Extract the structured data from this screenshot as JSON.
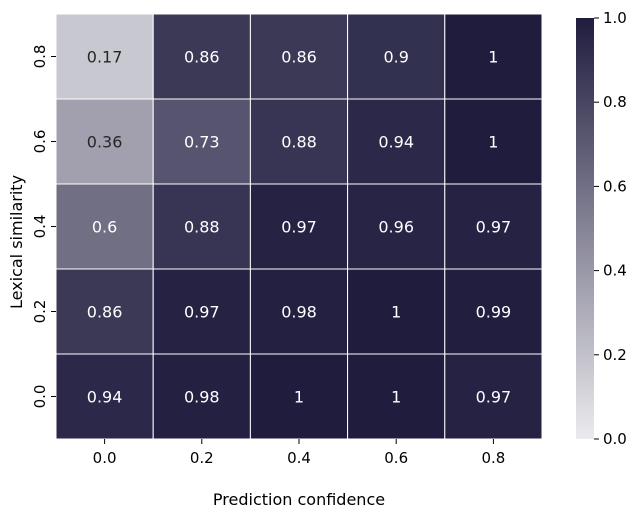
{
  "chart_data": {
    "type": "heatmap",
    "title": "",
    "xlabel": "Prediction confidence",
    "ylabel": "Lexical similarity",
    "x_categories": [
      "0.0",
      "0.2",
      "0.4",
      "0.6",
      "0.8"
    ],
    "y_categories_top_to_bottom": [
      "0.8",
      "0.6",
      "0.4",
      "0.2",
      "0.0"
    ],
    "values_top_to_bottom": [
      [
        0.17,
        0.86,
        0.86,
        0.9,
        1
      ],
      [
        0.36,
        0.73,
        0.88,
        0.94,
        1
      ],
      [
        0.6,
        0.88,
        0.97,
        0.96,
        0.97
      ],
      [
        0.86,
        0.97,
        0.98,
        1,
        0.99
      ],
      [
        0.94,
        0.98,
        1,
        1,
        0.97
      ]
    ],
    "value_labels_top_to_bottom": [
      [
        "0.17",
        "0.86",
        "0.86",
        "0.9",
        "1"
      ],
      [
        "0.36",
        "0.73",
        "0.88",
        "0.94",
        "1"
      ],
      [
        "0.6",
        "0.88",
        "0.97",
        "0.96",
        "0.97"
      ],
      [
        "0.86",
        "0.97",
        "0.98",
        "1",
        "0.99"
      ],
      [
        "0.94",
        "0.98",
        "1",
        "1",
        "0.97"
      ]
    ],
    "colorbar": {
      "range": [
        0.0,
        1.0
      ],
      "ticks": [
        "0.0",
        "0.2",
        "0.4",
        "0.6",
        "0.8",
        "1.0"
      ],
      "color_low": "#ebebee",
      "color_high": "#1f1c3e"
    },
    "cell_border_color": "#ffffff"
  }
}
